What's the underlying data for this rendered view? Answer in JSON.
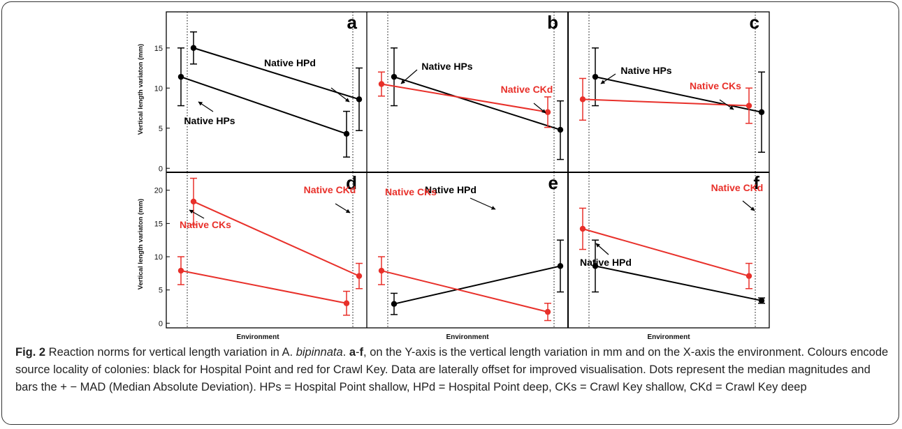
{
  "chart_data": [
    {
      "type": "line",
      "panel_letter": "a",
      "ylabel": "Vertical length variaton (mm)",
      "yticks": [
        0,
        5,
        10,
        15
      ],
      "ylim": [
        -0.5,
        19.5
      ],
      "series": [
        {
          "name": "Native HPd",
          "color": "#000000",
          "points": [
            {
              "x": "left",
              "y": 15.0,
              "lo": 13.0,
              "hi": 17.0
            },
            {
              "x": "right",
              "y": 8.6,
              "lo": 4.7,
              "hi": 12.5
            }
          ]
        },
        {
          "name": "Native HPs",
          "color": "#000000",
          "points": [
            {
              "x": "left",
              "y": 11.4,
              "lo": 7.8,
              "hi": 15.0
            },
            {
              "x": "right",
              "y": 4.3,
              "lo": 1.4,
              "hi": 7.1
            }
          ]
        }
      ]
    },
    {
      "type": "line",
      "panel_letter": "b",
      "ylim": [
        -0.5,
        19.5
      ],
      "series": [
        {
          "name": "Native HPs",
          "color": "#000000",
          "points": [
            {
              "x": "left",
              "y": 11.4,
              "lo": 7.8,
              "hi": 15.0
            },
            {
              "x": "right",
              "y": 4.8,
              "lo": 1.1,
              "hi": 8.4
            }
          ]
        },
        {
          "name": "Native CKd",
          "color": "#e8302a",
          "points": [
            {
              "x": "left",
              "y": 10.5,
              "lo": 9.0,
              "hi": 12.0
            },
            {
              "x": "right",
              "y": 7.0,
              "lo": 5.1,
              "hi": 8.9
            }
          ]
        }
      ]
    },
    {
      "type": "line",
      "panel_letter": "c",
      "ylim": [
        -0.5,
        19.5
      ],
      "series": [
        {
          "name": "Native HPs",
          "color": "#000000",
          "points": [
            {
              "x": "left",
              "y": 11.4,
              "lo": 7.8,
              "hi": 15.0
            },
            {
              "x": "right",
              "y": 7.0,
              "lo": 2.0,
              "hi": 12.0
            }
          ]
        },
        {
          "name": "Native CKs",
          "color": "#e8302a",
          "points": [
            {
              "x": "left",
              "y": 8.6,
              "lo": 6.0,
              "hi": 11.2
            },
            {
              "x": "right",
              "y": 7.8,
              "lo": 5.6,
              "hi": 10.0
            }
          ]
        }
      ]
    },
    {
      "type": "line",
      "panel_letter": "d",
      "ylabel": "Vertical length variaton (mm)",
      "yticks": [
        0,
        5,
        10,
        15,
        20
      ],
      "ylim": [
        -0.7,
        22.7
      ],
      "series": [
        {
          "name": "Native CKd",
          "color": "#e8302a",
          "points": [
            {
              "x": "left",
              "y": 18.3,
              "lo": 14.8,
              "hi": 21.8
            },
            {
              "x": "right",
              "y": 7.1,
              "lo": 5.2,
              "hi": 9.0
            }
          ]
        },
        {
          "name": "Native CKs",
          "color": "#e8302a",
          "points": [
            {
              "x": "left",
              "y": 7.9,
              "lo": 5.8,
              "hi": 10.0
            },
            {
              "x": "right",
              "y": 3.0,
              "lo": 1.2,
              "hi": 4.8
            }
          ]
        }
      ]
    },
    {
      "type": "line",
      "panel_letter": "e",
      "xlabel": "Environment",
      "ylim": [
        -0.7,
        22.7
      ],
      "series": [
        {
          "name": "Native HPd",
          "color": "#000000",
          "points": [
            {
              "x": "left",
              "y": 2.9,
              "lo": 1.3,
              "hi": 4.5
            },
            {
              "x": "right",
              "y": 8.6,
              "lo": 4.7,
              "hi": 12.5
            }
          ]
        },
        {
          "name": "Native CKs",
          "color": "#e8302a",
          "points": [
            {
              "x": "left",
              "y": 7.9,
              "lo": 5.8,
              "hi": 10.0
            },
            {
              "x": "right",
              "y": 1.7,
              "lo": 0.4,
              "hi": 3.0
            }
          ]
        }
      ]
    },
    {
      "type": "line",
      "panel_letter": "f",
      "xlabel": "Environment",
      "ylim": [
        -0.7,
        22.7
      ],
      "series": [
        {
          "name": "Native HPd",
          "color": "#000000",
          "points": [
            {
              "x": "left",
              "y": 8.6,
              "lo": 4.7,
              "hi": 12.5
            },
            {
              "x": "right",
              "y": 3.4,
              "lo": 3.0,
              "hi": 3.8
            }
          ]
        },
        {
          "name": "Native CKd",
          "color": "#e8302a",
          "points": [
            {
              "x": "left",
              "y": 14.2,
              "lo": 11.1,
              "hi": 17.3
            },
            {
              "x": "right",
              "y": 7.1,
              "lo": 5.2,
              "hi": 9.0
            }
          ]
        }
      ]
    }
  ],
  "labels": {
    "ylabel_top": "Vertical length variaton (mm)",
    "ylabel_bottom": "Vertical length variaton (mm)",
    "xlabel_d": "Environment",
    "xlabel_e": "Environment",
    "xlabel_f": "Environment"
  },
  "caption": {
    "label": "Fig. 2",
    "text_1": " Reaction norms for vertical length variation in A. ",
    "species": "bipinnata",
    "text_2": ". ",
    "range_a": "a",
    "dash": "-",
    "range_f": "f",
    "text_3": ", on the Y-axis is the vertical length variation in mm and on the X-axis the environment. Colours encode source locality of colonies: black for Hospital Point and red for Crawl Key. Data are laterally offset for improved visualisation. Dots represent the median magnitudes and bars the + − MAD (Median Absolute Deviation). HPs = Hospital Point shallow, HPd = Hospital Point deep, CKs = Crawl Key shallow, CKd = Crawl Key deep"
  }
}
